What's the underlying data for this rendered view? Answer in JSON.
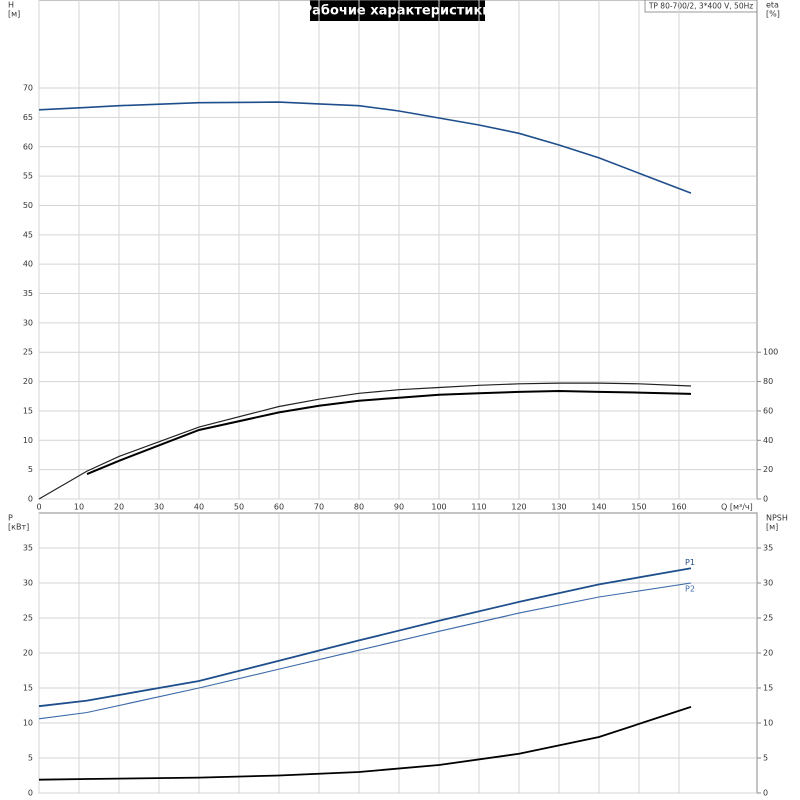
{
  "chart_data": [
    {
      "type": "line",
      "title": "Рабочие характеристики",
      "annotation": "TP 80-700/2, 3*400 V, 50Hz",
      "ylabel": "H",
      "yunit": "[м]",
      "y2label": "eta",
      "y2unit": "[%]",
      "xlabel": "Q [м³/ч]",
      "x": [
        0,
        12,
        20,
        40,
        60,
        70,
        80,
        90,
        100,
        110,
        120,
        130,
        140,
        150,
        163
      ],
      "xlim": [
        0,
        180
      ],
      "xticks": [
        0,
        10,
        20,
        30,
        40,
        50,
        60,
        70,
        80,
        90,
        100,
        110,
        120,
        130,
        140,
        150,
        160
      ],
      "ylim": [
        0,
        85
      ],
      "yticks": [
        0,
        5,
        10,
        15,
        20,
        25,
        30,
        35,
        40,
        45,
        50,
        55,
        60,
        65,
        70
      ],
      "y2lim": [
        0,
        340
      ],
      "y2ticks": [
        0,
        20,
        40,
        60,
        80,
        100
      ],
      "grid": true,
      "series": [
        {
          "color": "#1f4e8c",
          "width": 1.6,
          "values": [
            66.3,
            66.7,
            67.0,
            67.5,
            67.6,
            67.3,
            67.0,
            66.1,
            64.9,
            63.7,
            62.3,
            60.3,
            58.1,
            55.5,
            52.1
          ]
        },
        {
          "color": "#222222",
          "width": 1.2,
          "axis": "y2",
          "values": [
            0,
            19,
            29,
            49,
            63,
            68,
            72,
            74.5,
            76,
            77.5,
            78.5,
            79,
            79,
            78.5,
            77
          ]
        },
        {
          "color": "#000000",
          "width": 2,
          "axis": "y2",
          "values": [
            null,
            17,
            26,
            47,
            59,
            63.5,
            67,
            69,
            71,
            72,
            73,
            73.6,
            73,
            72.5,
            71.6
          ]
        }
      ]
    },
    {
      "type": "line",
      "ylabel": "P",
      "yunit": "[кВт]",
      "y2label": "NPSH",
      "y2unit": "[м]",
      "x": [
        0,
        12,
        40,
        60,
        80,
        100,
        120,
        140,
        163
      ],
      "xlim": [
        0,
        180
      ],
      "ylim": [
        0,
        40
      ],
      "yticks": [
        0,
        5,
        10,
        15,
        20,
        25,
        30,
        35
      ],
      "y2lim": [
        0,
        40
      ],
      "y2ticks": [
        0,
        5,
        10,
        15,
        20,
        25,
        30,
        35
      ],
      "grid": true,
      "series": [
        {
          "name": "P1",
          "color": "#1f4e8c",
          "width": 1.8,
          "values": [
            12.4,
            13.2,
            16.0,
            18.9,
            21.8,
            24.6,
            27.3,
            29.8,
            32.1
          ]
        },
        {
          "name": "P2",
          "color": "#3b6aa8",
          "width": 1.1,
          "values": [
            10.6,
            11.5,
            15.0,
            17.7,
            20.4,
            23.1,
            25.7,
            28.0,
            30.0
          ]
        },
        {
          "color": "#000000",
          "width": 1.8,
          "axis": "y2",
          "values": [
            1.9,
            2.0,
            2.2,
            2.5,
            3.0,
            4.0,
            5.6,
            8.0,
            12.3
          ]
        }
      ]
    }
  ]
}
